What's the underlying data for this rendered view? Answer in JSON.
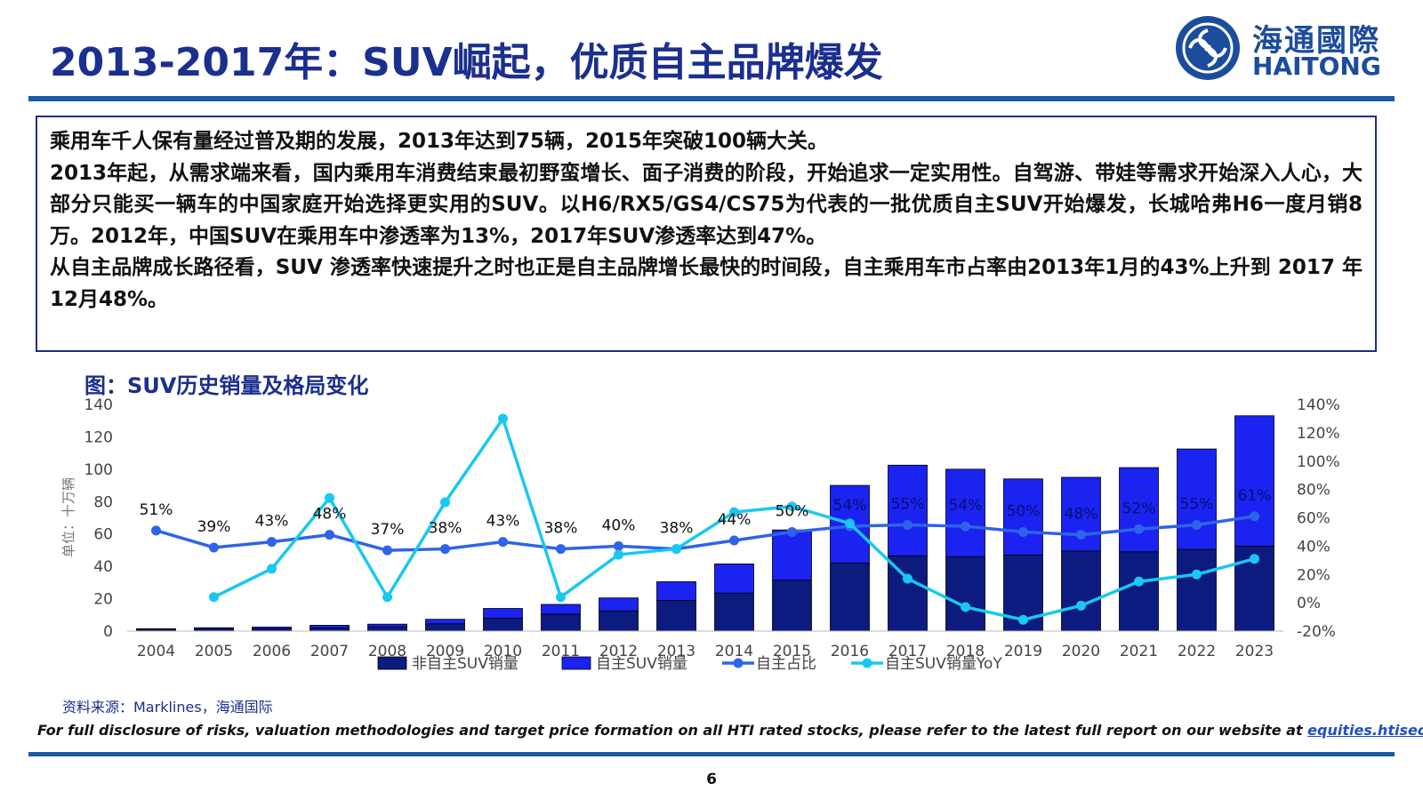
{
  "header": {
    "title": "2013-2017年：SUV崛起，优质自主品牌爆发",
    "logo_cn": "海通國際",
    "logo_en": "HAITONG"
  },
  "summary": {
    "p1": "乘用车千人保有量经过普及期的发展，2013年达到75辆，2015年突破100辆大关。",
    "p2": "2013年起，从需求端来看，国内乘用车消费结束最初野蛮增长、面子消费的阶段，开始追求一定实用性。自驾游、带娃等需求开始深入人心，大部分只能买一辆车的中国家庭开始选择更实用的SUV。以H6/RX5/GS4/CS75为代表的一批优质自主SUV开始爆发，长城哈弗H6一度月销8万。2012年，中国SUV在乘用车中渗透率为13%，2017年SUV渗透率达到47%。",
    "p3": "从自主品牌成长路径看，SUV 渗透率快速提升之时也正是自主品牌增长最快的时间段，自主乘用车市占率由2013年1月的43%上升到 2017 年12月48%。"
  },
  "chart_title": "图：SUV历史销量及格局变化",
  "chart_data": {
    "type": "bar",
    "stacked": true,
    "categories": [
      "2004",
      "2005",
      "2006",
      "2007",
      "2008",
      "2009",
      "2010",
      "2011",
      "2012",
      "2013",
      "2014",
      "2015",
      "2016",
      "2017",
      "2018",
      "2019",
      "2020",
      "2021",
      "2022",
      "2023"
    ],
    "ylabel": "单位：十万辆",
    "ylim": [
      0,
      140
    ],
    "yticks": [
      "0",
      "20",
      "40",
      "60",
      "80",
      "100",
      "120",
      "140"
    ],
    "y2lim": [
      -20,
      140
    ],
    "y2ticks": [
      "-20%",
      "0%",
      "20%",
      "40%",
      "60%",
      "80%",
      "100%",
      "120%",
      "140%"
    ],
    "series": [
      {
        "name": "非自主SUV销量",
        "kind": "bar",
        "color": "#0d1a80",
        "values": [
          1.0,
          1.3,
          1.5,
          2.0,
          2.7,
          4.5,
          8.0,
          10.5,
          12.5,
          19.0,
          23.5,
          31.5,
          42.0,
          46.5,
          46.0,
          47.0,
          49.5,
          49.0,
          50.5,
          52.5
        ]
      },
      {
        "name": "自主SUV销量",
        "kind": "bar",
        "color": "#1a23f0",
        "values": [
          0.5,
          0.8,
          1.0,
          1.6,
          1.6,
          2.8,
          6.0,
          6.0,
          8.0,
          11.5,
          18.0,
          31.0,
          48.0,
          56.0,
          54.0,
          47.0,
          45.5,
          52.0,
          62.0,
          80.5
        ]
      },
      {
        "name": "自主占比",
        "kind": "line",
        "color": "#2f63ea",
        "axis": "right",
        "values": [
          51,
          39,
          43,
          48,
          37,
          38,
          43,
          38,
          40,
          38,
          44,
          50,
          54,
          55,
          54,
          50,
          48,
          52,
          55,
          61
        ],
        "labels": [
          "51%",
          "39%",
          "43%",
          "48%",
          "37%",
          "38%",
          "43%",
          "38%",
          "40%",
          "38%",
          "44%",
          "50%",
          "54%",
          "55%",
          "54%",
          "50%",
          "48%",
          "52%",
          "55%",
          "61%"
        ]
      },
      {
        "name": "自主SUV销量YoY",
        "kind": "line",
        "color": "#18c8f2",
        "axis": "right",
        "values": [
          null,
          4,
          24,
          74,
          4,
          71,
          130,
          4,
          34,
          38,
          64,
          68,
          56,
          17,
          -3,
          -12,
          -2,
          15,
          20,
          31
        ]
      }
    ]
  },
  "source": "资料来源：Marklines，海通国际",
  "disclaimer": {
    "text": "For full disclosure of risks, valuation methodologies and target price formation on all HTI rated stocks, please refer to the latest full report on our website at ",
    "link": "equities.htisec.com"
  },
  "page_number": "6"
}
